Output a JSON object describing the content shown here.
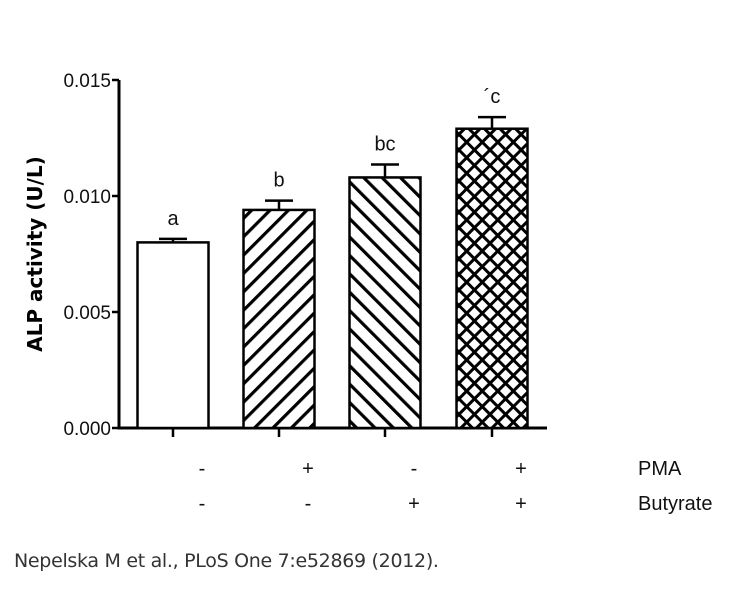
{
  "chart_data": {
    "type": "bar",
    "categories": [
      "PMA- / Butyrate-",
      "PMA+ / Butyrate-",
      "PMA- / Butyrate+",
      "PMA+ / Butyrate+"
    ],
    "values": [
      0.008,
      0.0094,
      0.0108,
      0.0129
    ],
    "errors": [
      0.00015,
      0.0004,
      0.00056,
      0.0005
    ],
    "significance_labels": [
      "a",
      "b",
      "bc",
      "´c"
    ],
    "fill_patterns": [
      "none",
      "diagonal-up",
      "diagonal-down",
      "crosshatch"
    ],
    "ylabel": "ALP activity (U/L)",
    "ylim": [
      0,
      0.015
    ],
    "yticks": [
      "0.000",
      "0.005",
      "0.010",
      "0.015"
    ],
    "ytick_values": [
      0,
      0.005,
      0.01,
      0.015
    ],
    "grid": false,
    "treatment_table": {
      "rows": [
        {
          "name": "PMA",
          "values": [
            "-",
            "+",
            "-",
            "+"
          ]
        },
        {
          "name": "Butyrate",
          "values": [
            "-",
            "-",
            "+",
            "+"
          ]
        }
      ]
    },
    "colors": {
      "bar_edge": "#000000",
      "bar_fill": "#ffffff",
      "hatch": "#000000"
    }
  },
  "citation": "Nepelska M et al., PLoS One 7:e52869 (2012)."
}
